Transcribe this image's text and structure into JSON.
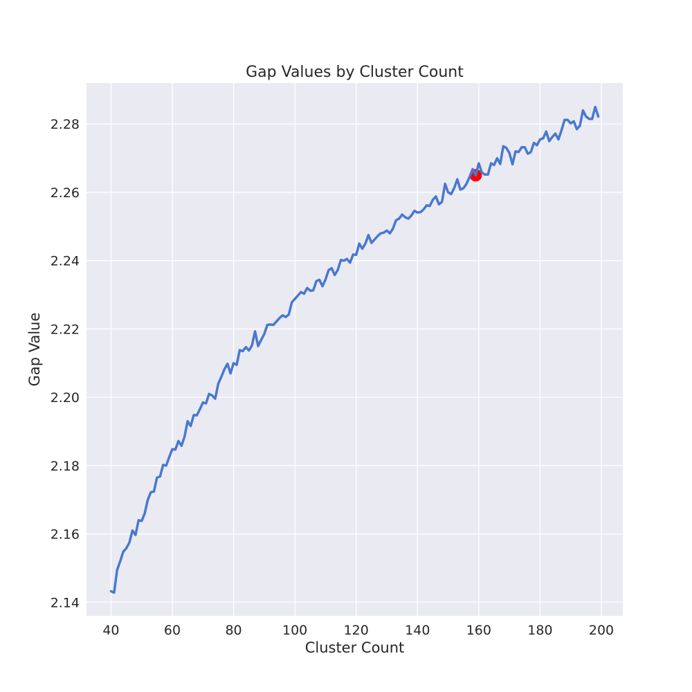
{
  "chart_data": {
    "type": "line",
    "title": "Gap Values by Cluster Count",
    "xlabel": "Cluster Count",
    "ylabel": "Gap Value",
    "xlim": [
      32,
      207
    ],
    "ylim": [
      2.136,
      2.292
    ],
    "xticks": [
      "40",
      "60",
      "80",
      "100",
      "120",
      "140",
      "160",
      "180",
      "200"
    ],
    "yticks": [
      "2.14",
      "2.16",
      "2.18",
      "2.20",
      "2.22",
      "2.24",
      "2.26",
      "2.28"
    ],
    "grid": true,
    "legend": "none",
    "colors": {
      "line": "#4878cf",
      "highlight": "#ff0000",
      "background": "#eaeaf2",
      "grid": "#ffffff"
    },
    "series": [
      {
        "x": [
          40,
          41,
          42,
          43,
          44,
          45,
          46,
          47,
          48,
          49,
          50,
          51,
          52,
          53,
          54,
          55,
          56,
          57,
          58,
          59,
          60,
          61,
          62,
          63,
          64,
          65,
          66,
          67,
          68,
          69,
          70,
          71,
          72,
          73,
          74,
          75,
          76,
          77,
          78,
          79,
          80,
          81,
          82,
          83,
          84,
          85,
          86,
          87,
          88,
          89,
          90,
          91,
          92,
          93,
          94,
          95,
          96,
          97,
          98,
          99,
          100,
          101,
          102,
          103,
          104,
          105,
          106,
          107,
          108,
          109,
          110,
          111,
          112,
          113,
          114,
          115,
          116,
          117,
          118,
          119,
          120,
          121,
          122,
          123,
          124,
          125,
          126,
          127,
          128,
          129,
          130,
          131,
          132,
          133,
          134,
          135,
          136,
          137,
          138,
          139,
          140,
          141,
          142,
          143,
          144,
          145,
          146,
          147,
          148,
          149,
          150,
          151,
          152,
          153,
          154,
          155,
          156,
          157,
          158,
          159,
          160,
          161,
          162,
          163,
          164,
          165,
          166,
          167,
          168,
          169,
          170,
          171,
          172,
          173,
          174,
          175,
          176,
          177,
          178,
          179,
          180,
          181,
          182,
          183,
          184,
          185,
          186,
          187,
          188,
          189,
          190,
          191,
          192,
          193,
          194,
          195,
          196,
          197,
          198,
          199
        ],
        "y": [
          2.1432,
          2.1428,
          2.1495,
          2.152,
          2.1548,
          2.1558,
          2.1575,
          2.161,
          2.1597,
          2.164,
          2.1638,
          2.166,
          2.17,
          2.1722,
          2.1724,
          2.1765,
          2.1768,
          2.1802,
          2.18,
          2.1825,
          2.1848,
          2.1847,
          2.1872,
          2.1858,
          2.1885,
          2.193,
          2.1916,
          2.1948,
          2.1947,
          2.1965,
          2.1985,
          2.1982,
          2.201,
          2.2005,
          2.1996,
          2.204,
          2.206,
          2.2082,
          2.2098,
          2.207,
          2.21,
          2.2095,
          2.2138,
          2.2135,
          2.2147,
          2.2137,
          2.2152,
          2.2193,
          2.215,
          2.2168,
          2.2185,
          2.2212,
          2.2213,
          2.2212,
          2.2222,
          2.2232,
          2.224,
          2.2235,
          2.2242,
          2.2278,
          2.2288,
          2.2298,
          2.2308,
          2.2303,
          2.232,
          2.2312,
          2.2313,
          2.234,
          2.2344,
          2.2325,
          2.2345,
          2.2372,
          2.2378,
          2.2358,
          2.2373,
          2.2402,
          2.24,
          2.2405,
          2.2394,
          2.2418,
          2.2417,
          2.245,
          2.2435,
          2.245,
          2.2475,
          2.2452,
          2.2462,
          2.2472,
          2.248,
          2.2482,
          2.2488,
          2.248,
          2.2494,
          2.2518,
          2.2523,
          2.2535,
          2.2527,
          2.2523,
          2.2532,
          2.2546,
          2.2541,
          2.2542,
          2.255,
          2.2562,
          2.256,
          2.2578,
          2.2588,
          2.2565,
          2.2572,
          2.2625,
          2.26,
          2.2595,
          2.2613,
          2.2638,
          2.2608,
          2.2612,
          2.2625,
          2.2645,
          2.2668,
          2.265,
          2.2685,
          2.2658,
          2.2652,
          2.2652,
          2.2685,
          2.268,
          2.27,
          2.2683,
          2.2735,
          2.273,
          2.2715,
          2.2682,
          2.272,
          2.2718,
          2.2732,
          2.2732,
          2.2713,
          2.2718,
          2.2745,
          2.2738,
          2.2755,
          2.2758,
          2.2778,
          2.275,
          2.2762,
          2.2772,
          2.2755,
          2.2782,
          2.2812,
          2.2812,
          2.2802,
          2.2808,
          2.2785,
          2.2795,
          2.284,
          2.2822,
          2.2815,
          2.2815,
          2.285,
          2.2822
        ]
      }
    ],
    "highlight_point": {
      "x": 159,
      "y": 2.265
    }
  }
}
